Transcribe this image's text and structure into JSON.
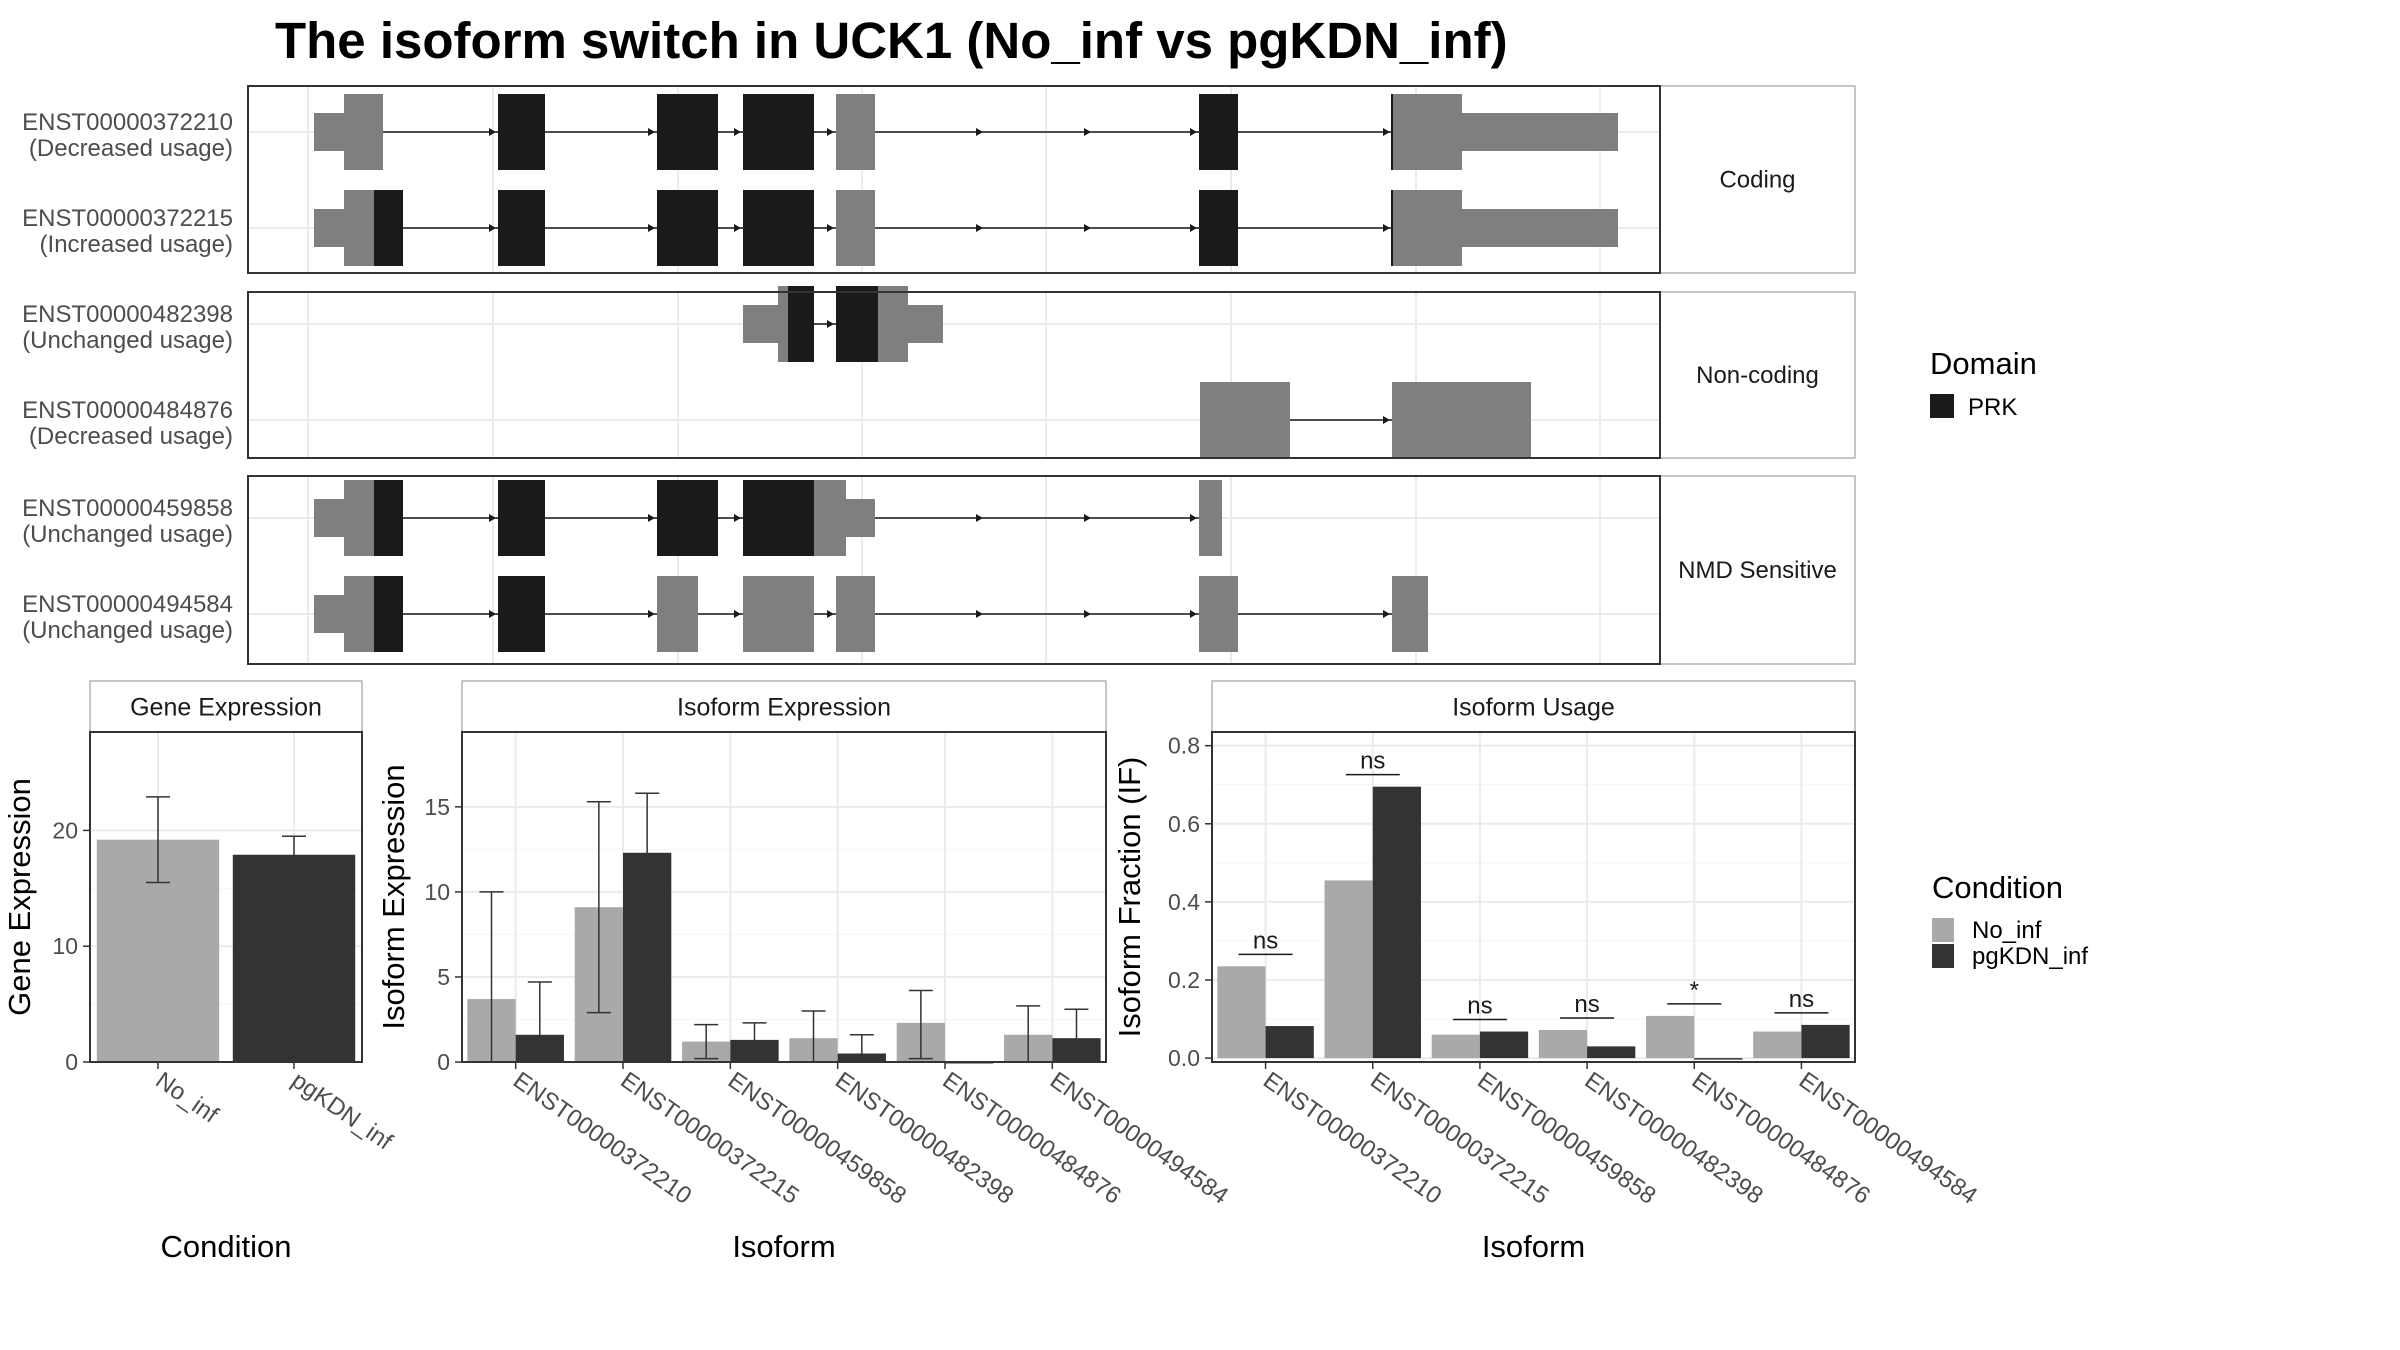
{
  "title": "The isoform switch in UCK1 (No_inf vs pgKDN_inf)",
  "colors": {
    "domain": "#1a1a1a",
    "coding": "#7f7f7f",
    "no_inf": "#a9a9a9",
    "pgkdn_inf": "#333333",
    "panel_border": "#333333",
    "strip_border": "#b3b3b3",
    "grid": "#ebebeb"
  },
  "transcripts": {
    "groups": [
      {
        "label": "Coding",
        "rows": [
          0,
          1
        ]
      },
      {
        "label": "Non-coding",
        "rows": [
          2,
          3
        ]
      },
      {
        "label": "NMD Sensitive",
        "rows": [
          4,
          5
        ]
      }
    ],
    "rows": [
      {
        "id": "ENST00000372210",
        "usage": "(Decreased usage)",
        "segments": [
          [
            66,
            96,
            "u"
          ],
          [
            96,
            135,
            "c"
          ],
          [
            250,
            297,
            "d"
          ],
          [
            409,
            470,
            "d"
          ],
          [
            495,
            566,
            "d"
          ],
          [
            588,
            627,
            "c"
          ],
          [
            951,
            990,
            "d"
          ],
          [
            1144,
            1214,
            "c"
          ],
          [
            1214,
            1370,
            "u"
          ]
        ],
        "arrows": [
          135,
          250,
          297,
          409,
          470,
          495,
          566,
          588,
          627,
          951,
          990,
          1144
        ],
        "boundary": [
          1144
        ]
      },
      {
        "id": "ENST00000372215",
        "usage": "(Increased usage)",
        "segments": [
          [
            66,
            96,
            "u"
          ],
          [
            96,
            126,
            "c"
          ],
          [
            126,
            155,
            "d"
          ],
          [
            250,
            297,
            "d"
          ],
          [
            409,
            470,
            "d"
          ],
          [
            495,
            566,
            "d"
          ],
          [
            588,
            627,
            "c"
          ],
          [
            951,
            990,
            "d"
          ],
          [
            1144,
            1214,
            "c"
          ],
          [
            1214,
            1370,
            "u"
          ]
        ],
        "arrows": [
          155,
          250,
          297,
          409,
          470,
          495,
          566,
          588,
          627,
          951,
          990,
          1144
        ],
        "boundary": [
          1144
        ]
      },
      {
        "id": "ENST00000482398",
        "usage": "(Unchanged usage)",
        "segments": [
          [
            495,
            530,
            "u"
          ],
          [
            530,
            540,
            "c"
          ],
          [
            540,
            566,
            "d"
          ],
          [
            588,
            630,
            "d"
          ],
          [
            630,
            660,
            "c"
          ],
          [
            660,
            695,
            "u"
          ]
        ],
        "arrows": [
          566,
          588
        ],
        "boundary": []
      },
      {
        "id": "ENST00000484876",
        "usage": "(Decreased usage)",
        "segments": [
          [
            952,
            1042,
            "c"
          ],
          [
            1144,
            1283,
            "c"
          ]
        ],
        "arrows": [
          1042,
          1144
        ],
        "boundary": []
      },
      {
        "id": "ENST00000459858",
        "usage": "(Unchanged usage)",
        "segments": [
          [
            66,
            96,
            "u"
          ],
          [
            96,
            126,
            "c"
          ],
          [
            126,
            155,
            "d"
          ],
          [
            250,
            297,
            "d"
          ],
          [
            409,
            470,
            "d"
          ],
          [
            495,
            566,
            "d"
          ],
          [
            566,
            598,
            "c"
          ],
          [
            598,
            627,
            "u"
          ],
          [
            951,
            974,
            "c"
          ]
        ],
        "arrows": [
          155,
          250,
          297,
          409,
          470,
          495,
          566,
          627,
          951
        ],
        "boundary": []
      },
      {
        "id": "ENST00000494584",
        "usage": "(Unchanged usage)",
        "segments": [
          [
            66,
            96,
            "u"
          ],
          [
            96,
            126,
            "c"
          ],
          [
            126,
            155,
            "d"
          ],
          [
            250,
            297,
            "d"
          ],
          [
            409,
            420,
            "c"
          ],
          [
            420,
            450,
            "c"
          ],
          [
            495,
            566,
            "c"
          ],
          [
            588,
            627,
            "c"
          ],
          [
            951,
            990,
            "c"
          ],
          [
            1144,
            1180,
            "c"
          ]
        ],
        "arrows": [
          155,
          250,
          297,
          409,
          470,
          495,
          566,
          588,
          627,
          951,
          990,
          1144
        ],
        "boundary": []
      }
    ]
  },
  "legend_domain": {
    "title": "Domain",
    "items": [
      {
        "label": "PRK",
        "color": "#1a1a1a"
      }
    ]
  },
  "legend_condition": {
    "title": "Condition",
    "items": [
      {
        "label": "No_inf",
        "color": "#a9a9a9"
      },
      {
        "label": "pgKDN_inf",
        "color": "#333333"
      }
    ]
  },
  "chart_data": [
    {
      "type": "bar",
      "title": "Gene Expression",
      "xlabel": "Condition",
      "ylabel": "Gene Expression",
      "categories": [
        "No_inf",
        "pgKDN_inf"
      ],
      "values": [
        19.2,
        17.9
      ],
      "errors": [
        [
          15.5,
          22.9
        ],
        [
          16.3,
          19.5
        ]
      ],
      "ylim": [
        0,
        28.5
      ],
      "yticks": [
        0,
        10,
        20
      ],
      "colors": [
        "#a9a9a9",
        "#333333"
      ]
    },
    {
      "type": "bar",
      "title": "Isoform Expression",
      "xlabel": "Isoform",
      "ylabel": "Isoform Expression",
      "categories": [
        "ENST00000372210",
        "ENST00000372215",
        "ENST00000459858",
        "ENST00000482398",
        "ENST00000484876",
        "ENST00000494584"
      ],
      "series": [
        {
          "name": "No_inf",
          "values": [
            3.7,
            9.1,
            1.2,
            1.4,
            2.3,
            1.6
          ],
          "errors": [
            [
              0,
              10
            ],
            [
              2.9,
              15.3
            ],
            [
              0.2,
              2.2
            ],
            [
              0,
              3.0
            ],
            [
              0.2,
              4.2
            ],
            [
              0,
              3.3
            ]
          ]
        },
        {
          "name": "pgKDN_inf",
          "values": [
            1.6,
            12.3,
            1.3,
            0.5,
            0,
            1.4
          ],
          "errors": [
            [
              0,
              4.7
            ],
            [
              8.9,
              15.8
            ],
            [
              0.3,
              2.3
            ],
            [
              0,
              1.6
            ],
            [
              0,
              0
            ],
            [
              0,
              3.1
            ]
          ]
        }
      ],
      "ylim": [
        0,
        19.4
      ],
      "yticks": [
        0,
        5,
        10,
        15
      ]
    },
    {
      "type": "bar",
      "title": "Isoform Usage",
      "xlabel": "Isoform",
      "ylabel": "Isoform Fraction (IF)",
      "categories": [
        "ENST00000372210",
        "ENST00000372215",
        "ENST00000459858",
        "ENST00000482398",
        "ENST00000484876",
        "ENST00000494584"
      ],
      "series": [
        {
          "name": "No_inf",
          "values": [
            0.235,
            0.455,
            0.06,
            0.072,
            0.108,
            0.068
          ]
        },
        {
          "name": "pgKDN_inf",
          "values": [
            0.082,
            0.695,
            0.068,
            0.03,
            0,
            0.085
          ]
        }
      ],
      "significance": [
        "ns",
        "ns",
        "ns",
        "ns",
        "*",
        "ns"
      ],
      "ylim": [
        -0.01,
        0.835
      ],
      "yticks": [
        0.0,
        0.2,
        0.4,
        0.6,
        0.8
      ]
    }
  ]
}
